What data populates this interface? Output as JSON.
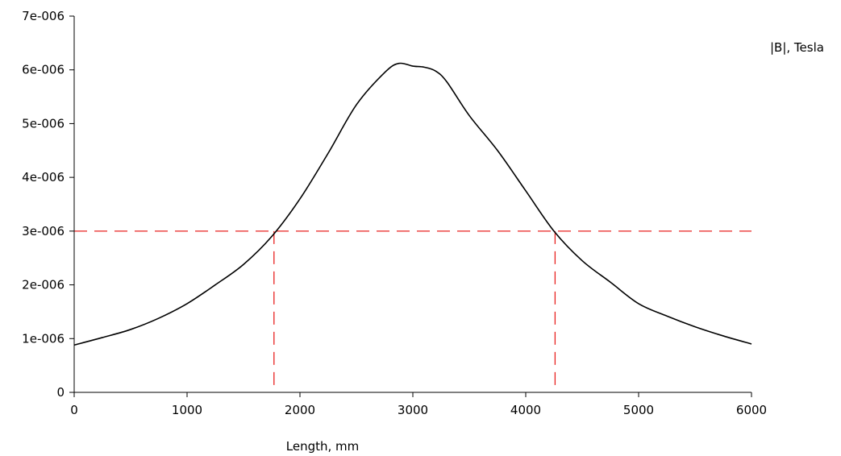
{
  "chart_data": {
    "type": "line",
    "title": "",
    "xlabel": "Length, mm",
    "ylabel": "|B|, Tesla",
    "xlim": [
      0,
      6000
    ],
    "ylim": [
      0,
      7e-06
    ],
    "x_ticks": [
      0,
      1000,
      2000,
      3000,
      4000,
      5000,
      6000
    ],
    "x_tick_labels": [
      "0",
      "1000",
      "2000",
      "3000",
      "4000",
      "5000",
      "6000"
    ],
    "y_ticks": [
      0,
      1e-06,
      2e-06,
      3e-06,
      4e-06,
      5e-06,
      6e-06,
      7e-06
    ],
    "y_tick_labels": [
      "0",
      "1e-006",
      "2e-006",
      "3e-006",
      "4e-006",
      "5e-006",
      "6e-006",
      "7e-006"
    ],
    "grid": false,
    "series": [
      {
        "color": "#000000",
        "x": [
          0,
          250,
          500,
          750,
          1000,
          1250,
          1500,
          1750,
          2000,
          2250,
          2500,
          2750,
          2875,
          3000,
          3100,
          3200,
          3300,
          3500,
          3750,
          4000,
          4250,
          4500,
          4750,
          5000,
          5250,
          5500,
          5750,
          6000
        ],
        "y": [
          8.8e-07,
          1.02e-06,
          1.17e-06,
          1.38e-06,
          1.65e-06,
          2e-06,
          2.38e-06,
          2.9e-06,
          3.6e-06,
          4.45e-06,
          5.35e-06,
          5.95e-06,
          6.12e-06,
          6.07e-06,
          6.05e-06,
          5.98e-06,
          5.78e-06,
          5.15e-06,
          4.5e-06,
          3.75e-06,
          3e-06,
          2.45e-06,
          2.05e-06,
          1.65e-06,
          1.42e-06,
          1.22e-06,
          1.05e-06,
          9e-07
        ]
      }
    ],
    "reference_lines": {
      "color": "#e8211f",
      "style": "dashed",
      "horizontal_y": 3e-06,
      "vertical_x": [
        1770,
        4260
      ]
    }
  }
}
